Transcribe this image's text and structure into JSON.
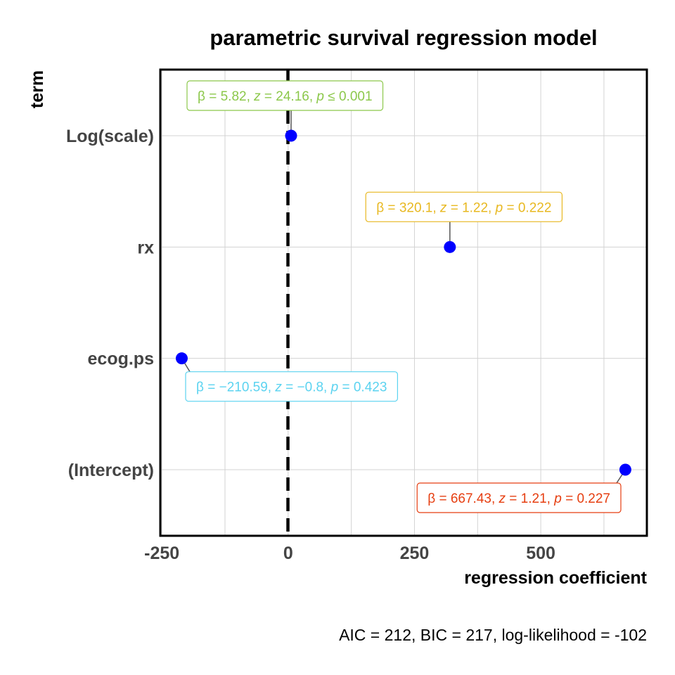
{
  "chart_data": {
    "type": "scatter",
    "title": "parametric survival regression model",
    "xlabel": "regression coefficient",
    "ylabel": "term",
    "xlim": [
      -253,
      710
    ],
    "x_ticks": [
      -250,
      0,
      250,
      500
    ],
    "x_tick_labels": [
      "-250",
      "0",
      "250",
      "500"
    ],
    "reference_line": 0,
    "grid": true,
    "point_color": "#0000FF",
    "terms": [
      {
        "term": "Log(scale)",
        "estimate": 5.82,
        "label_beta": "5.82",
        "label_z": "24.16",
        "label_p_op": "≤",
        "label_p": "0.001",
        "color": "#8CC84B",
        "label_side": "above"
      },
      {
        "term": "rx",
        "estimate": 320.1,
        "label_beta": "320.1",
        "label_z": "1.22",
        "label_p_op": "=",
        "label_p": "0.222",
        "color": "#E8B820",
        "label_side": "above"
      },
      {
        "term": "ecog.ps",
        "estimate": -210.59,
        "label_beta": "−210.59",
        "label_z": "−0.8",
        "label_p_op": "=",
        "label_p": "0.423",
        "color": "#5BD3F0",
        "label_side": "below"
      },
      {
        "term": "(Intercept)",
        "estimate": 667.43,
        "label_beta": "667.43",
        "label_z": "1.21",
        "label_p_op": "=",
        "label_p": "0.227",
        "color": "#E63E10",
        "label_side": "below"
      }
    ]
  },
  "caption": "AIC = 212, BIC = 217, log-likelihood = -102"
}
